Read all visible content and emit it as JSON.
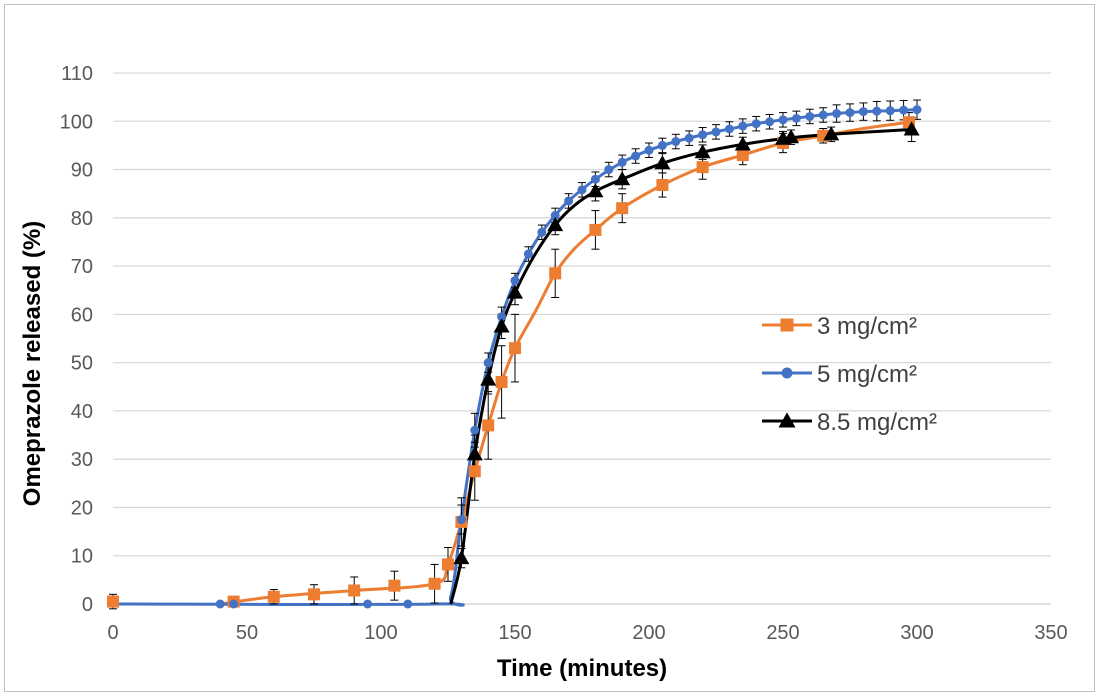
{
  "chart_data": {
    "type": "scatter",
    "title": "",
    "xlabel": "Time (minutes)",
    "ylabel": "Omeprazole released (%)",
    "xlim": [
      0,
      350
    ],
    "ylim": [
      0,
      110
    ],
    "xticks": [
      0,
      50,
      100,
      150,
      200,
      250,
      300,
      350
    ],
    "yticks": [
      0,
      10,
      20,
      30,
      40,
      50,
      60,
      70,
      80,
      90,
      100,
      110
    ],
    "grid": "horizontal",
    "legend_position": "right",
    "series": [
      {
        "name": "3 mg/cm²",
        "color": "#ed7d31",
        "marker": "square",
        "points": [
          {
            "x": 0,
            "y": 0.5,
            "err": 1.5
          },
          {
            "x": 45,
            "y": 0.5,
            "err": 0.5
          },
          {
            "x": 60,
            "y": 1.5,
            "err": 1.5
          },
          {
            "x": 75,
            "y": 2.0,
            "err": 2.0
          },
          {
            "x": 90,
            "y": 2.8,
            "err": 2.8
          },
          {
            "x": 105,
            "y": 3.8,
            "err": 3.0
          },
          {
            "x": 120,
            "y": 4.2,
            "err": 4.0
          },
          {
            "x": 125,
            "y": 8.2,
            "err": 3.5
          },
          {
            "x": 130,
            "y": 17.0,
            "err": 5.0
          },
          {
            "x": 135,
            "y": 27.5,
            "err": 6.0
          },
          {
            "x": 140,
            "y": 37.0,
            "err": 7.0
          },
          {
            "x": 145,
            "y": 46.0,
            "err": 7.5
          },
          {
            "x": 150,
            "y": 53.0,
            "err": 7.0
          },
          {
            "x": 165,
            "y": 68.5,
            "err": 5.0
          },
          {
            "x": 180,
            "y": 77.5,
            "err": 4.0
          },
          {
            "x": 190,
            "y": 82.0,
            "err": 3.0
          },
          {
            "x": 205,
            "y": 86.8,
            "err": 2.5
          },
          {
            "x": 220,
            "y": 90.5,
            "err": 2.5
          },
          {
            "x": 235,
            "y": 93.0,
            "err": 2.0
          },
          {
            "x": 250,
            "y": 95.5,
            "err": 2.0
          },
          {
            "x": 265,
            "y": 97.0,
            "err": 1.5
          },
          {
            "x": 297,
            "y": 99.8,
            "err": 2.0
          }
        ]
      },
      {
        "name": "5 mg/cm²",
        "color": "#4472c4",
        "marker": "circle",
        "points": [
          {
            "x": 40,
            "y": 0,
            "err": 0
          },
          {
            "x": 45,
            "y": 0,
            "err": 0
          },
          {
            "x": 95,
            "y": 0,
            "err": 0
          },
          {
            "x": 110,
            "y": 0,
            "err": 0
          },
          {
            "x": 130,
            "y": 17.5,
            "err": 3.0
          },
          {
            "x": 135,
            "y": 36.0,
            "err": 3.5
          },
          {
            "x": 140,
            "y": 50.0,
            "err": 2.0
          },
          {
            "x": 145,
            "y": 59.5,
            "err": 2.0
          },
          {
            "x": 150,
            "y": 67.0,
            "err": 1.5
          },
          {
            "x": 155,
            "y": 72.5,
            "err": 1.5
          },
          {
            "x": 160,
            "y": 77.0,
            "err": 1.5
          },
          {
            "x": 165,
            "y": 80.5,
            "err": 1.5
          },
          {
            "x": 170,
            "y": 83.5,
            "err": 1.5
          },
          {
            "x": 175,
            "y": 85.8,
            "err": 1.5
          },
          {
            "x": 180,
            "y": 88.0,
            "err": 1.5
          },
          {
            "x": 185,
            "y": 90.0,
            "err": 1.5
          },
          {
            "x": 190,
            "y": 91.5,
            "err": 1.5
          },
          {
            "x": 195,
            "y": 92.8,
            "err": 1.5
          },
          {
            "x": 200,
            "y": 94.0,
            "err": 1.5
          },
          {
            "x": 205,
            "y": 95.0,
            "err": 1.5
          },
          {
            "x": 210,
            "y": 95.8,
            "err": 1.5
          },
          {
            "x": 215,
            "y": 96.5,
            "err": 1.5
          },
          {
            "x": 220,
            "y": 97.2,
            "err": 1.5
          },
          {
            "x": 225,
            "y": 97.8,
            "err": 1.5
          },
          {
            "x": 230,
            "y": 98.4,
            "err": 1.5
          },
          {
            "x": 235,
            "y": 99.0,
            "err": 1.5
          },
          {
            "x": 240,
            "y": 99.5,
            "err": 1.5
          },
          {
            "x": 245,
            "y": 99.9,
            "err": 1.5
          },
          {
            "x": 250,
            "y": 100.3,
            "err": 1.5
          },
          {
            "x": 255,
            "y": 100.6,
            "err": 1.5
          },
          {
            "x": 260,
            "y": 101.0,
            "err": 1.5
          },
          {
            "x": 265,
            "y": 101.3,
            "err": 1.5
          },
          {
            "x": 270,
            "y": 101.6,
            "err": 1.8
          },
          {
            "x": 275,
            "y": 101.8,
            "err": 1.8
          },
          {
            "x": 280,
            "y": 102.0,
            "err": 1.8
          },
          {
            "x": 285,
            "y": 102.1,
            "err": 2.0
          },
          {
            "x": 290,
            "y": 102.2,
            "err": 2.0
          },
          {
            "x": 295,
            "y": 102.3,
            "err": 2.0
          },
          {
            "x": 300,
            "y": 102.4,
            "err": 2.0
          }
        ]
      },
      {
        "name": "8.5 mg/cm²",
        "color": "#000000",
        "marker": "triangle",
        "points": [
          {
            "x": 130,
            "y": 9.5,
            "err": 2.0
          },
          {
            "x": 135,
            "y": 31.0,
            "err": 4.0
          },
          {
            "x": 140,
            "y": 46.5,
            "err": 3.0
          },
          {
            "x": 145,
            "y": 57.5,
            "err": 2.5
          },
          {
            "x": 150,
            "y": 64.5,
            "err": 2.5
          },
          {
            "x": 165,
            "y": 78.5,
            "err": 2.0
          },
          {
            "x": 180,
            "y": 85.5,
            "err": 2.0
          },
          {
            "x": 190,
            "y": 88.0,
            "err": 2.0
          },
          {
            "x": 205,
            "y": 91.3,
            "err": 2.0
          },
          {
            "x": 220,
            "y": 93.6,
            "err": 1.5
          },
          {
            "x": 235,
            "y": 95.2,
            "err": 1.5
          },
          {
            "x": 250,
            "y": 96.4,
            "err": 1.5
          },
          {
            "x": 253,
            "y": 96.7,
            "err": 1.5
          },
          {
            "x": 268,
            "y": 97.3,
            "err": 1.5
          },
          {
            "x": 298,
            "y": 98.3,
            "err": 2.5
          }
        ]
      }
    ],
    "curves": [
      {
        "series": "3 mg/cm²",
        "points": [
          [
            40,
            0
          ],
          [
            60,
            1.5
          ],
          [
            90,
            2.8
          ],
          [
            120,
            4.2
          ],
          [
            125,
            8.2
          ],
          [
            130,
            17
          ],
          [
            135,
            27.5
          ],
          [
            140,
            37
          ],
          [
            145,
            46
          ],
          [
            150,
            53
          ],
          [
            158,
            61
          ],
          [
            165,
            68.5
          ],
          [
            172,
            73.5
          ],
          [
            180,
            77.5
          ],
          [
            190,
            82
          ],
          [
            205,
            86.8
          ],
          [
            220,
            90.5
          ],
          [
            235,
            93
          ],
          [
            250,
            95.5
          ],
          [
            265,
            97
          ],
          [
            280,
            98.5
          ],
          [
            297,
            99.8
          ]
        ]
      },
      {
        "series": "5 mg/cm²",
        "points": [
          [
            0,
            0
          ],
          [
            120,
            0
          ],
          [
            126,
            1.5
          ],
          [
            130,
            17.5
          ],
          [
            135,
            36
          ],
          [
            140,
            50
          ],
          [
            145,
            59.5
          ],
          [
            150,
            67
          ],
          [
            155,
            72.5
          ],
          [
            160,
            77
          ],
          [
            165,
            80.5
          ],
          [
            170,
            83.5
          ],
          [
            180,
            88
          ],
          [
            190,
            91.5
          ],
          [
            200,
            94
          ],
          [
            210,
            95.8
          ],
          [
            220,
            97.2
          ],
          [
            230,
            98.4
          ],
          [
            240,
            99.5
          ],
          [
            250,
            100.3
          ],
          [
            260,
            101
          ],
          [
            270,
            101.6
          ],
          [
            280,
            102
          ],
          [
            290,
            102.2
          ],
          [
            300,
            102.4
          ]
        ]
      },
      {
        "series": "8.5 mg/cm²",
        "points": [
          [
            126,
            0
          ],
          [
            130,
            9.5
          ],
          [
            135,
            31
          ],
          [
            140,
            46.5
          ],
          [
            145,
            57.5
          ],
          [
            150,
            64.5
          ],
          [
            157,
            72
          ],
          [
            165,
            78.5
          ],
          [
            172,
            82.5
          ],
          [
            180,
            85.5
          ],
          [
            190,
            88
          ],
          [
            205,
            91.3
          ],
          [
            220,
            93.6
          ],
          [
            235,
            95.2
          ],
          [
            250,
            96.4
          ],
          [
            268,
            97.3
          ],
          [
            298,
            98.3
          ]
        ]
      }
    ]
  }
}
